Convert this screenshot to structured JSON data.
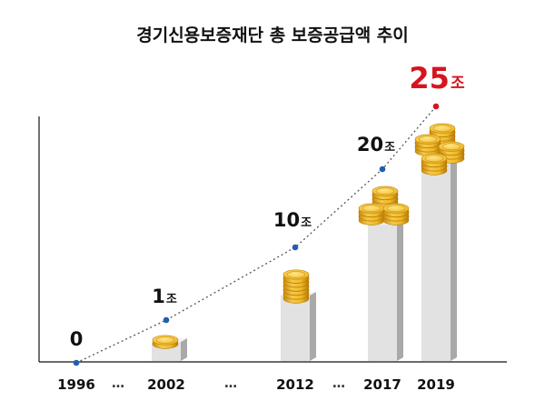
{
  "chart_data": {
    "type": "bar",
    "title": "경기신용보증재단 총 보증공급액 추이",
    "categories": [
      "1996",
      "2002",
      "2012",
      "2017",
      "2019"
    ],
    "separator": "…",
    "series": [
      {
        "values": [
          0,
          1,
          10,
          20,
          25
        ],
        "labels": [
          "0",
          "1",
          "10",
          "20",
          "25"
        ]
      }
    ],
    "unit": "조",
    "highlight_index": 4,
    "colors": {
      "highlight": "#d7141e",
      "marker": "#1f5fb0",
      "trend_line": "#555555",
      "bar_front": "#e2e2e2",
      "bar_side": "#a9a9a9",
      "coin": "#f3be2c"
    },
    "grid": false,
    "legend": "none"
  }
}
